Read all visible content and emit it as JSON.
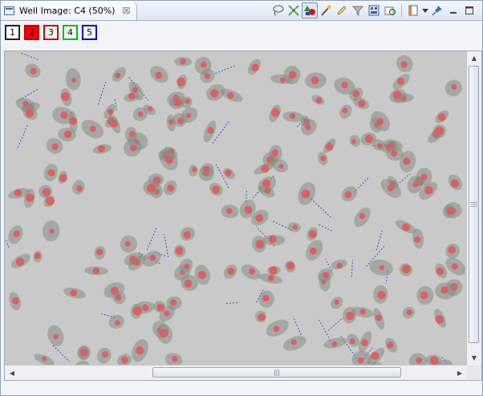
{
  "tab": {
    "title": "Well Image: C4 (50%)",
    "close_glyph": "☒"
  },
  "toolbar": {
    "icons": [
      "lasso-icon",
      "fit-to-window-icon",
      "show-objects-icon",
      "highlight-wand-icon",
      "edit-annotation-icon",
      "filter-icon",
      "gallery-icon",
      "reset-zoom-icon",
      "view-menu-icon",
      "dropdown-arrow-icon",
      "pin-icon",
      "minimize-icon",
      "maximize-icon"
    ]
  },
  "channels": [
    {
      "label": "1",
      "border": "#222222",
      "fill": "#ffffff",
      "text": "#000000"
    },
    {
      "label": "2",
      "border": "#c00000",
      "fill": "#ff0000",
      "text": "#000000"
    },
    {
      "label": "3",
      "border": "#cc0000",
      "fill": "#ffffff",
      "text": "#000000"
    },
    {
      "label": "4",
      "border": "#00c000",
      "fill": "#ffffff",
      "text": "#000000"
    },
    {
      "label": "5",
      "border": "#0000cc",
      "fill": "#ffffff",
      "text": "#000000"
    }
  ],
  "colors": {
    "nucleus": "#e05a5a",
    "outline": "#44c044",
    "cytoplasm": "#8a8a8a",
    "fiber": "#1a2bd8",
    "background": "#c9c9c9"
  },
  "scroll": {
    "grip": "|||",
    "up": "▲",
    "down": "▼",
    "left": "◀",
    "right": "▶"
  }
}
